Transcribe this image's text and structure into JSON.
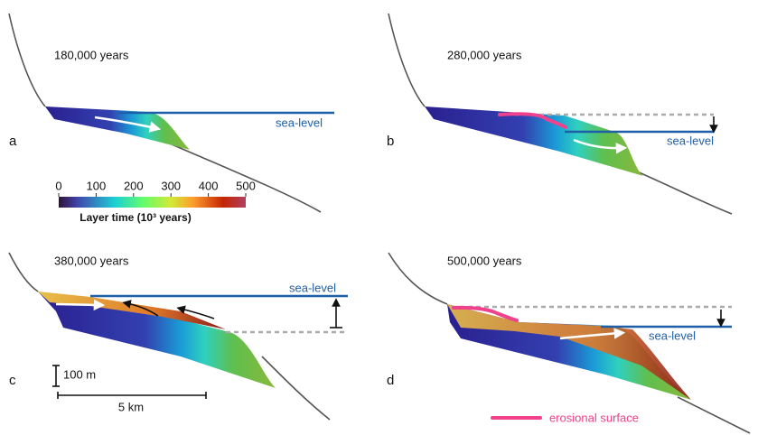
{
  "panels": [
    {
      "label": "a",
      "time": "180,000 years",
      "sea_level": "sea-level"
    },
    {
      "label": "b",
      "time": "280,000 years",
      "sea_level": "sea-level"
    },
    {
      "label": "c",
      "time": "380,000 years",
      "sea_level": "sea-level"
    },
    {
      "label": "d",
      "time": "500,000 years",
      "sea_level": "sea-level"
    }
  ],
  "colorbar": {
    "ticks": [
      0,
      100,
      200,
      300,
      400,
      500
    ],
    "title": "Layer time (10³ years)"
  },
  "scale": {
    "vertical": "100 m",
    "horizontal": "5 km"
  },
  "legend": {
    "label": "erosional surface"
  }
}
